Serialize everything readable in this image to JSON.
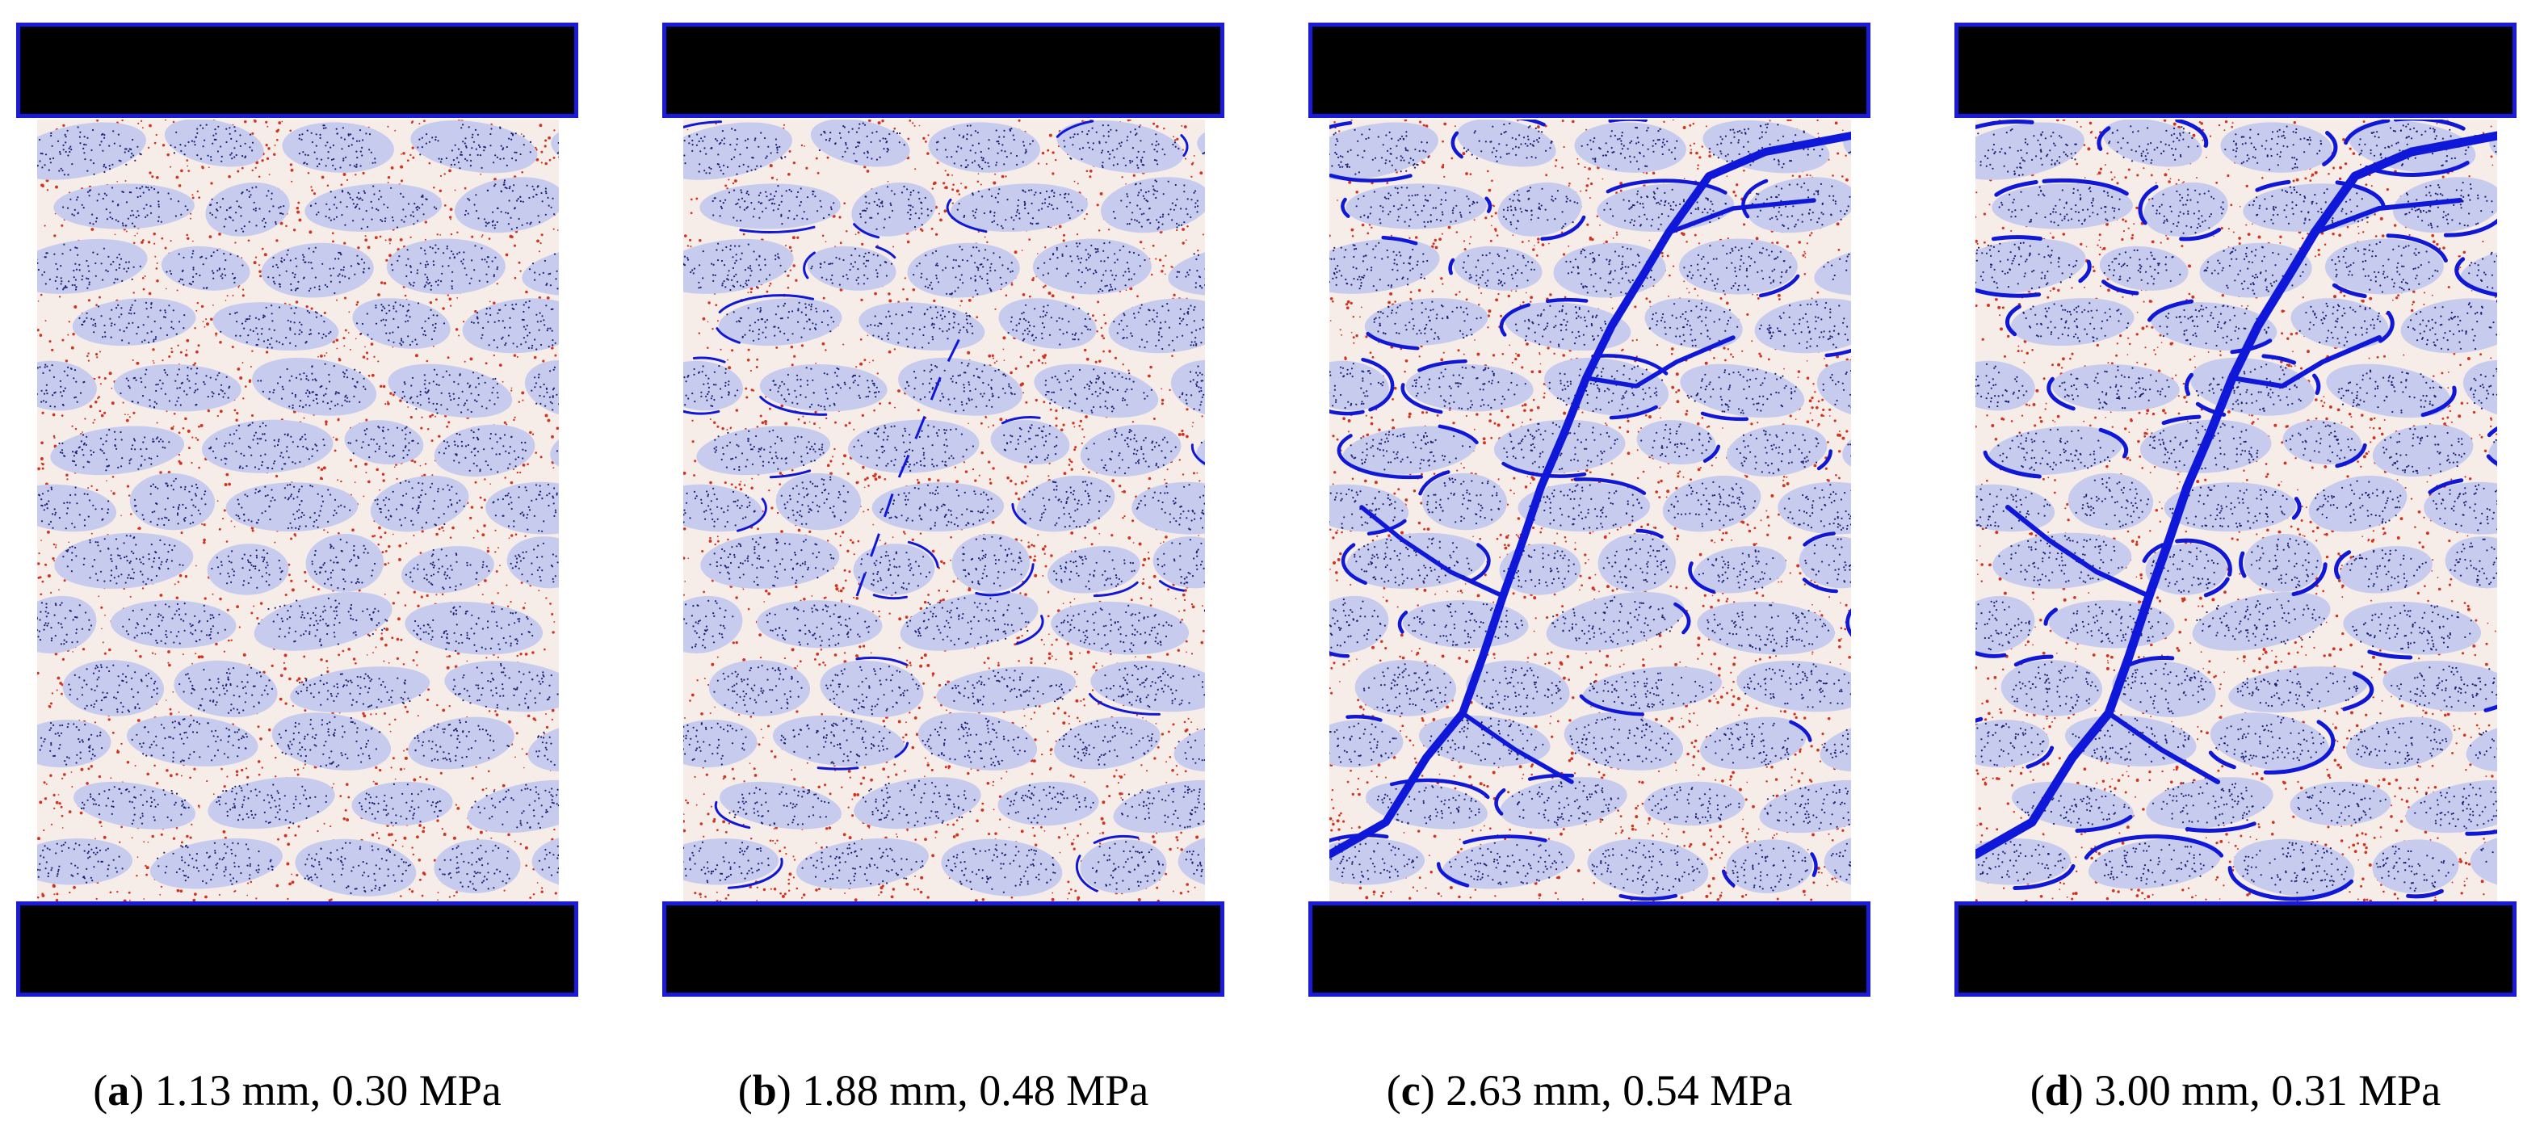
{
  "colors": {
    "platen_fill": "#000000",
    "platen_border": "#1a1adb",
    "aggregate_fill": "#c7cbee",
    "aggregate_dots": "#1b2070",
    "mortar_fill": "#f6ece8",
    "mortar_dots": "#d2321e",
    "crack": "#0f17d8"
  },
  "panels": [
    {
      "letter": "a",
      "displacement": "1.13 mm",
      "stress": "0.30 MPa",
      "crack_level": 0.0
    },
    {
      "letter": "b",
      "displacement": "1.88 mm",
      "stress": "0.48 MPa",
      "crack_level": 0.35
    },
    {
      "letter": "c",
      "displacement": "2.63 mm",
      "stress": "0.54 MPa",
      "crack_level": 0.85
    },
    {
      "letter": "d",
      "displacement": "3.00 mm",
      "stress": "0.31 MPa",
      "crack_level": 1.0
    }
  ]
}
